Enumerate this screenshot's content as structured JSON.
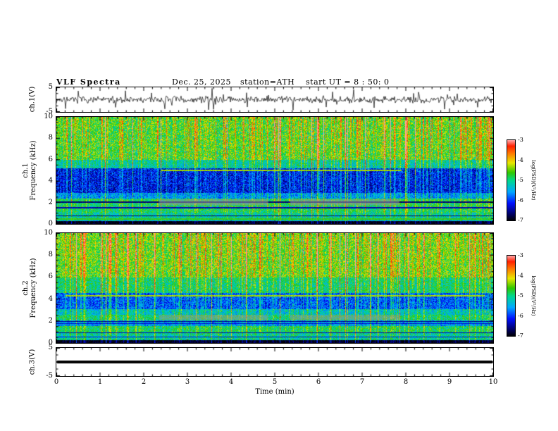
{
  "header": {
    "title": "VLF Spectra",
    "date": "Dec. 25, 2025",
    "station": "station=ATH",
    "start_ut": "start UT =  8 : 50: 0"
  },
  "x_axis": {
    "label": "Time (min)",
    "min": 0,
    "max": 10,
    "major_ticks": [
      0,
      1,
      2,
      3,
      4,
      5,
      6,
      7,
      8,
      9,
      10
    ],
    "minor_tick_step": 0.2
  },
  "colormap": {
    "stops": [
      {
        "u": 0.0,
        "c": "#000000"
      },
      {
        "u": 0.08,
        "c": "#000060"
      },
      {
        "u": 0.22,
        "c": "#0010ff"
      },
      {
        "u": 0.36,
        "c": "#00a8ff"
      },
      {
        "u": 0.5,
        "c": "#00d890"
      },
      {
        "u": 0.6,
        "c": "#30c800"
      },
      {
        "u": 0.72,
        "c": "#e8e800"
      },
      {
        "u": 0.84,
        "c": "#ff7800"
      },
      {
        "u": 0.93,
        "c": "#ff2000"
      },
      {
        "u": 1.0,
        "c": "#ffa0a0"
      }
    ]
  },
  "colorbars": [
    {
      "label": "log(PSD)(V²/Hz)",
      "min": -7,
      "max": -3,
      "ticks": [
        -3,
        -4,
        -5,
        -6,
        -7
      ]
    },
    {
      "label": "log(PSD)(V²/Hz)",
      "min": -7,
      "max": -3,
      "ticks": [
        -3,
        -4,
        -5,
        -6,
        -7
      ]
    }
  ],
  "chart_data": [
    {
      "id": "ch1_waveform",
      "type": "line",
      "ylabel": "ch.1(V)",
      "xlim": [
        0,
        10
      ],
      "ylim": [
        -5,
        5
      ],
      "yticks": [
        5,
        -5
      ],
      "signal": "broadband atmospheric noise about ±1.5 V with impulsive sferic spikes reaching ±5 V",
      "gen": {
        "seed": 7,
        "amp": 0.8,
        "spike_prob": 0.06,
        "spike_amp": 3.0
      }
    },
    {
      "id": "ch1_spectrogram",
      "type": "heatmap",
      "ylabel_lines": [
        "ch.1",
        "Frequency (kHz)"
      ],
      "xlim": [
        0,
        10
      ],
      "ylim": [
        0,
        10
      ],
      "yticks": [
        10,
        8,
        6,
        4,
        2,
        0
      ],
      "vlim": [
        -7,
        -3
      ],
      "colorbar_label": "log(PSD)(V²/Hz)",
      "bands": [
        {
          "f": [
            0.0,
            0.3
          ],
          "base": -7.0,
          "noise": 0.2
        },
        {
          "f": [
            0.3,
            0.6
          ],
          "base": -5.4,
          "noise": 0.5
        },
        {
          "f": [
            0.6,
            1.1
          ],
          "base": -5.2,
          "noise": 0.5
        },
        {
          "f": [
            1.1,
            2.4
          ],
          "base": -5.0,
          "noise": 0.55
        },
        {
          "f": [
            2.4,
            2.9
          ],
          "base": -5.7,
          "noise": 0.5
        },
        {
          "f": [
            2.9,
            5.2
          ],
          "base": -6.3,
          "noise": 0.55
        },
        {
          "f": [
            5.2,
            6.0
          ],
          "base": -5.3,
          "noise": 0.5
        },
        {
          "f": [
            6.0,
            10.0
          ],
          "base": -4.8,
          "noise": 0.6
        }
      ],
      "hlines": [
        {
          "f": 2.05,
          "hw": 0.07,
          "v": -6.6,
          "t": [
            0,
            10
          ]
        },
        {
          "f": 1.55,
          "hw": 0.05,
          "v": -6.4,
          "t": [
            0,
            10
          ]
        },
        {
          "f": 0.8,
          "hw": 0.04,
          "v": -6.6,
          "t": [
            0,
            10
          ]
        },
        {
          "f": 0.5,
          "hw": 0.05,
          "v": -4.6,
          "t": [
            0,
            10
          ]
        },
        {
          "f": 5.05,
          "hw": 0.05,
          "v": -4.3,
          "t": [
            2.4,
            7.9
          ]
        }
      ],
      "patches": [
        {
          "t": [
            2.35,
            4.85
          ],
          "f": [
            1.75,
            2.3
          ],
          "color": "rgba(150,150,150,0.55)"
        },
        {
          "t": [
            5.35,
            7.85
          ],
          "f": [
            1.75,
            2.3
          ],
          "color": "rgba(150,150,150,0.55)"
        }
      ],
      "gen": {
        "seed": 101,
        "strong_thresh": 0.955,
        "mid_thresh": 0.7,
        "streak_base": 0.4
      }
    },
    {
      "id": "ch2_spectrogram",
      "type": "heatmap",
      "ylabel_lines": [
        "ch.2",
        "Frequency (kHz)"
      ],
      "xlim": [
        0,
        10
      ],
      "ylim": [
        0,
        10
      ],
      "yticks": [
        10,
        8,
        6,
        4,
        2,
        0
      ],
      "vlim": [
        -7,
        -3
      ],
      "colorbar_label": "log(PSD)(V²/Hz)",
      "bands": [
        {
          "f": [
            0.0,
            0.3
          ],
          "base": -7.0,
          "noise": 0.2
        },
        {
          "f": [
            0.3,
            0.9
          ],
          "base": -5.2,
          "noise": 0.5
        },
        {
          "f": [
            0.9,
            1.6
          ],
          "base": -5.0,
          "noise": 0.5
        },
        {
          "f": [
            1.6,
            2.1
          ],
          "base": -5.7,
          "noise": 0.45
        },
        {
          "f": [
            2.1,
            2.6
          ],
          "base": -5.1,
          "noise": 0.5
        },
        {
          "f": [
            2.6,
            3.1
          ],
          "base": -5.4,
          "noise": 0.5
        },
        {
          "f": [
            3.1,
            4.6
          ],
          "base": -6.0,
          "noise": 0.55
        },
        {
          "f": [
            4.6,
            6.0
          ],
          "base": -5.1,
          "noise": 0.5
        },
        {
          "f": [
            6.0,
            10.0
          ],
          "base": -4.7,
          "noise": 0.6
        }
      ],
      "hlines": [
        {
          "f": 4.35,
          "hw": 0.06,
          "v": -4.3,
          "t": [
            0.2,
            9.8
          ]
        },
        {
          "f": 2.0,
          "hw": 0.05,
          "v": -6.5,
          "t": [
            0,
            10
          ]
        },
        {
          "f": 1.8,
          "hw": 0.05,
          "v": -6.3,
          "t": [
            0,
            10
          ]
        },
        {
          "f": 0.95,
          "hw": 0.04,
          "v": -6.4,
          "t": [
            0,
            10
          ]
        },
        {
          "f": 0.6,
          "hw": 0.04,
          "v": -6.2,
          "t": [
            0,
            10
          ]
        }
      ],
      "patches": [
        {
          "t": [
            2.35,
            4.85
          ],
          "f": [
            2.1,
            2.55
          ],
          "color": "rgba(150,150,150,0.5)"
        },
        {
          "t": [
            5.35,
            7.85
          ],
          "f": [
            2.1,
            2.55
          ],
          "color": "rgba(150,150,150,0.5)"
        }
      ],
      "gen": {
        "seed": 202,
        "strong_thresh": 0.952,
        "mid_thresh": 0.7,
        "streak_base": 0.4
      }
    },
    {
      "id": "ch3_waveform",
      "type": "flat",
      "ylabel": "ch.3(V)",
      "xlim": [
        0,
        10
      ],
      "ylim": [
        -5,
        5
      ],
      "yticks": [
        5,
        -5
      ],
      "signal": "constant 0 V (flat thick line, channel inactive)",
      "value": 0
    }
  ]
}
